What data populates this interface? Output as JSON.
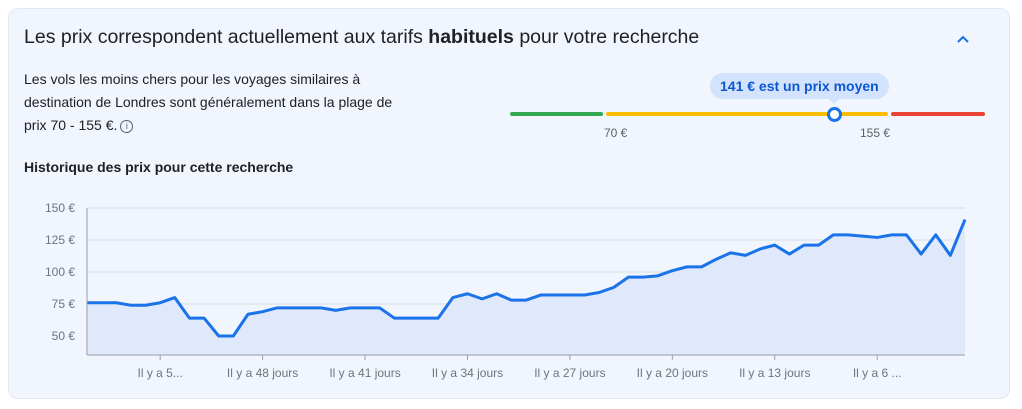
{
  "header": {
    "title_pre": "Les prix correspondent actuellement aux tarifs ",
    "title_bold": "habituels",
    "title_post": " pour votre recherche",
    "collapse_icon": "chevron-up-icon"
  },
  "description": {
    "text": "Les vols les moins chers pour les voyages similaires à destination de Londres sont généralement dans la plage de prix 70 - 155 €.",
    "info_icon": "i"
  },
  "price_range": {
    "low_label": "70 €",
    "high_label": "155 €",
    "low": 70,
    "high": 155,
    "current": 141,
    "tooltip": "141 € est un prix moyen",
    "colors": {
      "low": "#34a853",
      "typical": "#fbbc04",
      "high": "#ea4335"
    }
  },
  "history": {
    "title": "Historique des prix pour cette recherche"
  },
  "chart_data": {
    "type": "area",
    "title": "Historique des prix pour cette recherche",
    "xlabel": "",
    "ylabel": "",
    "ylim": [
      35,
      150
    ],
    "yticks": [
      50,
      75,
      100,
      125,
      150
    ],
    "ytick_labels": [
      "50 €",
      "75 €",
      "100 €",
      "125 €",
      "150 €"
    ],
    "xticks": [
      55,
      48,
      41,
      34,
      27,
      20,
      13,
      6
    ],
    "xtick_labels": [
      "Il y a 5...",
      "Il y a 48 jours",
      "Il y a 41 jours",
      "Il y a 34 jours",
      "Il y a 27 jours",
      "Il y a 20 jours",
      "Il y a 13 jours",
      "Il y a 6 ..."
    ],
    "x_days_ago_range": [
      60,
      0
    ],
    "values": [
      76,
      76,
      76,
      74,
      74,
      76,
      80,
      64,
      64,
      50,
      50,
      67,
      69,
      72,
      72,
      72,
      72,
      70,
      72,
      72,
      72,
      64,
      64,
      64,
      64,
      80,
      83,
      79,
      83,
      78,
      78,
      82,
      82,
      82,
      82,
      84,
      88,
      96,
      96,
      97,
      101,
      104,
      104,
      110,
      115,
      113,
      118,
      121,
      114,
      121,
      121,
      129,
      129,
      128,
      127,
      129,
      129,
      114,
      129,
      113,
      141
    ],
    "grid": true,
    "line_color": "#1a73e8",
    "fill_color": "#e0e9fb"
  }
}
